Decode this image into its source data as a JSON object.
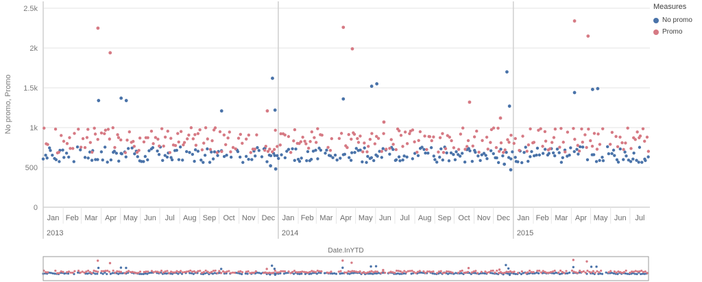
{
  "chart_data": {
    "type": "scatter",
    "ylabel": "No promo, Promo",
    "xlabel": "",
    "ylim": [
      0,
      2500
    ],
    "y_ticks": [
      "0",
      "500",
      "1k",
      "1.5k",
      "2k",
      "2.5k"
    ],
    "x_months": [
      {
        "year": "2013",
        "months": [
          "Jan",
          "Feb",
          "Mar",
          "Apr",
          "May",
          "Jun",
          "Jul",
          "Aug",
          "Sep",
          "Oct",
          "Nov",
          "Dec"
        ]
      },
      {
        "year": "2014",
        "months": [
          "Jan",
          "Feb",
          "Mar",
          "Apr",
          "May",
          "Jun",
          "Jul",
          "Aug",
          "Sep",
          "Oct",
          "Nov",
          "Dec"
        ]
      },
      {
        "year": "2015",
        "months": [
          "Jan",
          "Feb",
          "Mar",
          "Apr",
          "May",
          "Jun",
          "Jul"
        ]
      }
    ],
    "series": [
      {
        "name": "No promo",
        "color": "#4a73a9",
        "band": [
          560,
          760
        ],
        "outliers": [
          {
            "x": "2013-03-28",
            "y": 1340
          },
          {
            "x": "2013-05-02",
            "y": 1370
          },
          {
            "x": "2013-05-10",
            "y": 1340
          },
          {
            "x": "2013-10-05",
            "y": 1210
          },
          {
            "x": "2013-12-20",
            "y": 520
          },
          {
            "x": "2013-12-23",
            "y": 1620
          },
          {
            "x": "2013-12-27",
            "y": 1220
          },
          {
            "x": "2013-12-28",
            "y": 480
          },
          {
            "x": "2014-04-12",
            "y": 1360
          },
          {
            "x": "2014-05-26",
            "y": 1520
          },
          {
            "x": "2014-06-03",
            "y": 1550
          },
          {
            "x": "2014-12-18",
            "y": 540
          },
          {
            "x": "2014-12-22",
            "y": 1700
          },
          {
            "x": "2014-12-26",
            "y": 1270
          },
          {
            "x": "2014-12-28",
            "y": 470
          },
          {
            "x": "2015-04-06",
            "y": 1440
          },
          {
            "x": "2015-05-04",
            "y": 1480
          },
          {
            "x": "2015-05-12",
            "y": 1490
          }
        ]
      },
      {
        "name": "Promo",
        "color": "#d67a84",
        "band": [
          680,
          1000
        ],
        "outliers": [
          {
            "x": "2013-03-27",
            "y": 2250
          },
          {
            "x": "2013-04-15",
            "y": 1940
          },
          {
            "x": "2013-12-15",
            "y": 1210
          },
          {
            "x": "2014-04-12",
            "y": 2260
          },
          {
            "x": "2014-04-26",
            "y": 1990
          },
          {
            "x": "2014-06-14",
            "y": 1070
          },
          {
            "x": "2014-10-25",
            "y": 1320
          },
          {
            "x": "2014-12-12",
            "y": 1120
          },
          {
            "x": "2015-04-06",
            "y": 2340
          },
          {
            "x": "2015-04-27",
            "y": 2150
          }
        ]
      }
    ],
    "grid": true,
    "legend": {
      "title": "Measures",
      "position": "top-right"
    },
    "navigator_label": "Date.InYTD",
    "x_range": [
      "2013-01-01",
      "2015-07-31"
    ]
  }
}
